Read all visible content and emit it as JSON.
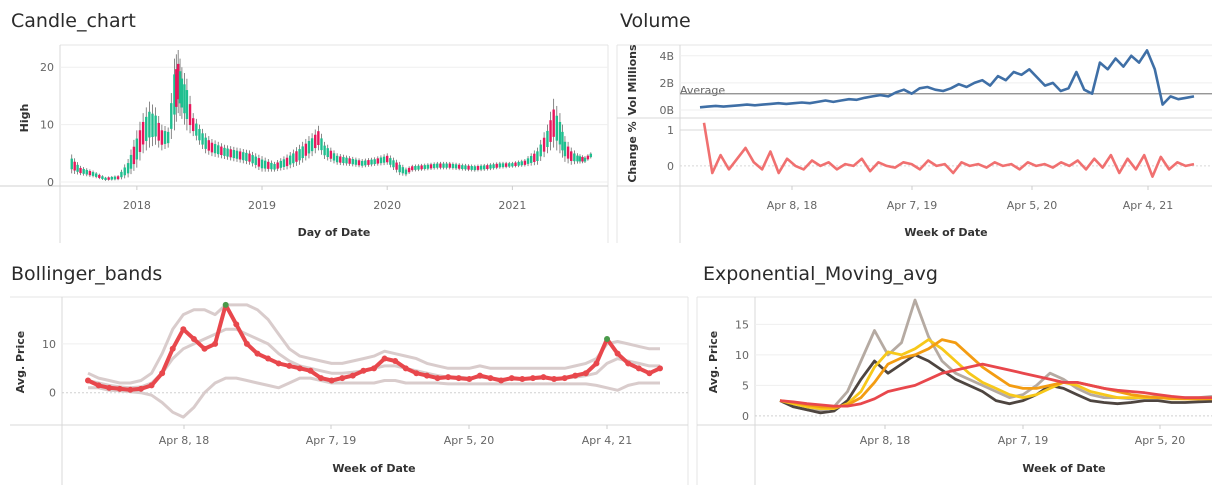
{
  "chart_data": [
    {
      "id": "candle",
      "type": "candlestick",
      "title": "Candle_chart",
      "xlabel": "Day of Date",
      "ylabel": "High",
      "xticks": [
        "2018",
        "2019",
        "2020",
        "2021"
      ],
      "yticks": [
        0,
        10,
        20
      ],
      "ylim": [
        0,
        23
      ],
      "xlim": [
        2017.45,
        2021.7
      ],
      "colors": {
        "up": "#1fbf8f",
        "down": "#e8175d",
        "wick": "#555555"
      },
      "x": [
        2017.48,
        2017.55,
        2017.65,
        2017.75,
        2017.85,
        2017.93,
        2018.0,
        2018.05,
        2018.1,
        2018.15,
        2018.2,
        2018.25,
        2018.3,
        2018.33,
        2018.36,
        2018.4,
        2018.45,
        2018.5,
        2018.55,
        2018.6,
        2018.7,
        2018.8,
        2018.9,
        2019.0,
        2019.1,
        2019.2,
        2019.3,
        2019.4,
        2019.45,
        2019.5,
        2019.6,
        2019.7,
        2019.8,
        2019.9,
        2020.0,
        2020.1,
        2020.15,
        2020.2,
        2020.3,
        2020.4,
        2020.5,
        2020.6,
        2020.7,
        2020.8,
        2020.9,
        2021.0,
        2021.1,
        2021.2,
        2021.28,
        2021.33,
        2021.38,
        2021.42,
        2021.47,
        2021.52,
        2021.58,
        2021.65
      ],
      "high": [
        4.8,
        2.8,
        2.0,
        0.9,
        1.2,
        4.0,
        9.0,
        12.0,
        14.0,
        13.0,
        10.0,
        9.5,
        21.5,
        23.0,
        20.0,
        18.0,
        12.0,
        10.0,
        8.5,
        7.5,
        6.5,
        6.0,
        5.5,
        4.5,
        3.5,
        4.8,
        6.5,
        8.5,
        9.8,
        7.0,
        5.0,
        4.5,
        4.0,
        4.3,
        5.0,
        3.5,
        2.5,
        3.0,
        3.2,
        3.5,
        3.5,
        3.2,
        3.0,
        3.2,
        3.5,
        3.5,
        4.0,
        6.0,
        10.0,
        14.5,
        12.0,
        8.0,
        6.0,
        5.0,
        4.5,
        5.5
      ],
      "low": [
        1.5,
        1.2,
        0.8,
        0.2,
        0.3,
        0.8,
        2.5,
        5.0,
        6.0,
        6.5,
        5.5,
        6.0,
        9.0,
        12.0,
        11.0,
        9.0,
        8.0,
        6.5,
        5.0,
        4.5,
        4.0,
        3.5,
        3.0,
        1.8,
        1.8,
        2.2,
        3.0,
        4.5,
        5.5,
        4.0,
        3.0,
        2.8,
        2.5,
        2.8,
        3.0,
        1.2,
        1.0,
        1.8,
        2.0,
        2.2,
        2.2,
        2.0,
        1.8,
        2.0,
        2.3,
        2.5,
        2.7,
        3.0,
        5.0,
        6.0,
        5.0,
        3.5,
        3.0,
        3.2,
        3.3,
        4.5
      ]
    },
    {
      "id": "volume",
      "type": "line",
      "title": "Volume",
      "xlabel": "Week of Date",
      "xticks": [
        "Apr 8, 18",
        "Apr 7, 19",
        "Apr 5, 20",
        "Apr 4, 21"
      ],
      "reference_line": "Average",
      "panes": [
        {
          "ylabel": "Vol Millions",
          "yticks": [
            "0B",
            "2B",
            "4B"
          ],
          "ylim": [
            0,
            4.5
          ],
          "average": 1.2,
          "color": "#3f6fa6",
          "values": [
            0.2,
            0.25,
            0.3,
            0.25,
            0.3,
            0.35,
            0.4,
            0.35,
            0.4,
            0.45,
            0.5,
            0.45,
            0.5,
            0.55,
            0.5,
            0.6,
            0.7,
            0.6,
            0.7,
            0.8,
            0.75,
            0.9,
            1.0,
            1.1,
            1.0,
            1.3,
            1.5,
            1.2,
            1.6,
            1.7,
            1.5,
            1.4,
            1.6,
            1.9,
            1.7,
            2.0,
            2.2,
            1.8,
            2.5,
            2.2,
            2.8,
            2.6,
            3.0,
            2.4,
            1.8,
            2.0,
            1.4,
            1.6,
            2.8,
            1.5,
            1.2,
            3.5,
            3.0,
            3.8,
            3.2,
            4.0,
            3.5,
            4.4,
            3.0,
            0.4,
            1.0,
            0.8,
            0.9,
            1.0
          ]
        },
        {
          "ylabel": "Change %",
          "yticks": [
            "0",
            "1"
          ],
          "ylim": [
            -0.45,
            1.25
          ],
          "color": "#f07070",
          "values": [
            1.2,
            -0.2,
            0.3,
            -0.1,
            0.2,
            0.5,
            0.1,
            -0.1,
            0.4,
            -0.2,
            0.2,
            0.0,
            -0.1,
            0.15,
            0.0,
            0.1,
            -0.1,
            0.05,
            0.0,
            0.2,
            -0.15,
            0.1,
            0.0,
            -0.05,
            0.1,
            0.05,
            -0.1,
            0.15,
            0.0,
            0.05,
            -0.2,
            0.1,
            0.0,
            0.05,
            -0.05,
            0.1,
            0.0,
            0.05,
            -0.1,
            0.1,
            0.0,
            0.05,
            -0.05,
            0.1,
            0.0,
            0.15,
            -0.1,
            0.2,
            -0.05,
            0.3,
            -0.2,
            0.2,
            -0.1,
            0.3,
            -0.3,
            0.25,
            -0.1,
            0.1,
            0.0,
            0.05
          ]
        }
      ]
    },
    {
      "id": "bollinger",
      "type": "line",
      "title": "Bollinger_bands",
      "xlabel": "Week of Date",
      "ylabel": "Avg. Price",
      "xticks": [
        "Apr 8, 18",
        "Apr 7, 19",
        "Apr 5, 20",
        "Apr 4, 21"
      ],
      "yticks": [
        0,
        10
      ],
      "ylim": [
        -6,
        19
      ],
      "colors": {
        "price": "#e8474c",
        "highlight": "#4a9a4a",
        "bands": "#d9cccc"
      },
      "price": [
        2.5,
        1.5,
        1.0,
        0.8,
        0.6,
        0.8,
        1.5,
        4.0,
        9.0,
        13.0,
        11.0,
        9.0,
        10.0,
        18.0,
        14.0,
        10.0,
        8.0,
        7.0,
        6.0,
        5.5,
        5.0,
        4.5,
        3.0,
        2.5,
        3.0,
        3.5,
        4.5,
        5.0,
        7.0,
        6.5,
        5.0,
        4.0,
        3.5,
        3.0,
        3.2,
        3.0,
        2.8,
        3.5,
        3.0,
        2.5,
        3.0,
        2.8,
        3.0,
        3.2,
        2.8,
        3.0,
        3.5,
        4.0,
        6.0,
        11.0,
        8.0,
        6.0,
        5.0,
        4.0,
        5.0
      ],
      "upper": [
        4.0,
        3.0,
        2.5,
        2.0,
        2.0,
        2.5,
        4.0,
        8.0,
        13.0,
        16.0,
        17.0,
        17.0,
        16.0,
        18.0,
        18.0,
        18.0,
        17.0,
        15.0,
        12.0,
        9.0,
        7.5,
        7.0,
        6.5,
        6.0,
        6.0,
        6.5,
        7.0,
        7.5,
        8.5,
        8.0,
        7.5,
        7.0,
        6.0,
        5.5,
        5.0,
        5.0,
        5.0,
        5.5,
        5.0,
        5.0,
        5.0,
        5.0,
        5.0,
        5.0,
        5.0,
        5.0,
        5.5,
        6.0,
        7.0,
        10.0,
        10.5,
        10.0,
        9.5,
        9.0,
        9.0
      ],
      "middle": [
        2.5,
        2.0,
        1.5,
        1.2,
        1.0,
        1.2,
        2.0,
        4.0,
        7.0,
        9.0,
        10.0,
        11.0,
        12.0,
        13.0,
        13.0,
        12.0,
        11.0,
        10.0,
        8.0,
        6.5,
        5.5,
        5.0,
        4.5,
        4.0,
        4.0,
        4.2,
        4.5,
        5.0,
        5.5,
        5.5,
        5.0,
        4.5,
        4.0,
        3.5,
        3.2,
        3.2,
        3.0,
        3.2,
        3.0,
        2.8,
        2.8,
        2.8,
        2.9,
        3.0,
        3.0,
        3.0,
        3.2,
        3.5,
        4.0,
        6.0,
        7.0,
        6.5,
        6.0,
        5.5,
        5.5
      ],
      "lower": [
        1.0,
        1.0,
        0.5,
        0.4,
        0.2,
        0.0,
        -0.5,
        -2.0,
        -4.0,
        -5.0,
        -3.0,
        0.0,
        2.0,
        3.0,
        3.0,
        2.5,
        2.0,
        1.5,
        1.0,
        2.0,
        3.0,
        3.0,
        2.5,
        2.0,
        2.0,
        2.0,
        2.0,
        2.0,
        2.5,
        2.5,
        2.0,
        2.0,
        2.0,
        2.0,
        1.8,
        1.8,
        1.8,
        1.8,
        1.8,
        1.8,
        1.8,
        1.8,
        1.8,
        1.8,
        1.8,
        1.8,
        1.8,
        1.8,
        1.5,
        1.0,
        0.5,
        1.5,
        2.0,
        2.0,
        2.0
      ]
    },
    {
      "id": "ema",
      "type": "line",
      "title": "Exponential_Moving_avg",
      "xlabel": "Week of Date",
      "ylabel": "Avg. Price",
      "xticks": [
        "Apr 8, 18",
        "Apr 7, 19",
        "Apr 5, 20"
      ],
      "yticks": [
        0,
        5,
        10,
        15
      ],
      "ylim": [
        -1,
        19
      ],
      "series": [
        {
          "color": "#b5aaa2",
          "values": [
            2.5,
            1.5,
            1.0,
            0.8,
            1.5,
            4.0,
            9.0,
            14.0,
            10.0,
            12.0,
            19.0,
            13.0,
            9.0,
            7.0,
            6.0,
            5.0,
            4.0,
            3.0,
            3.5,
            5.0,
            7.0,
            6.0,
            4.5,
            3.5,
            3.0,
            3.0,
            2.8,
            3.0,
            3.2,
            3.0,
            3.0,
            3.0,
            3.2
          ]
        },
        {
          "color": "#4e4540",
          "values": [
            2.5,
            1.5,
            1.0,
            0.5,
            0.8,
            2.5,
            6.0,
            9.0,
            7.0,
            8.5,
            10.0,
            9.0,
            7.5,
            6.0,
            5.0,
            4.0,
            2.5,
            2.0,
            2.5,
            3.5,
            5.0,
            4.5,
            3.5,
            2.5,
            2.2,
            2.0,
            2.2,
            2.5,
            2.5,
            2.2,
            2.2,
            2.3,
            2.4
          ]
        },
        {
          "color": "#f7c81a",
          "values": [
            2.5,
            2.0,
            1.5,
            1.2,
            1.2,
            2.0,
            4.0,
            8.0,
            10.5,
            10.0,
            11.0,
            12.5,
            11.0,
            9.0,
            7.0,
            5.5,
            4.5,
            3.5,
            3.0,
            3.5,
            4.5,
            5.5,
            5.0,
            4.0,
            3.5,
            3.0,
            3.0,
            3.0,
            3.0,
            2.8,
            2.8,
            2.8,
            2.9
          ]
        },
        {
          "color": "#f39c12",
          "values": [
            2.5,
            2.2,
            1.8,
            1.5,
            1.4,
            1.8,
            3.0,
            5.5,
            8.5,
            9.5,
            10.0,
            11.0,
            12.5,
            12.0,
            10.0,
            8.0,
            6.5,
            5.0,
            4.5,
            4.5,
            5.0,
            5.5,
            5.5,
            5.0,
            4.5,
            4.0,
            3.5,
            3.2,
            3.0,
            2.9,
            2.8,
            2.8,
            2.8
          ]
        },
        {
          "color": "#e8474c",
          "values": [
            2.5,
            2.3,
            2.0,
            1.8,
            1.6,
            1.6,
            2.0,
            2.8,
            4.0,
            4.5,
            5.0,
            6.0,
            7.0,
            7.5,
            8.0,
            8.5,
            8.0,
            7.5,
            7.0,
            6.5,
            6.0,
            5.5,
            5.5,
            5.0,
            4.5,
            4.2,
            4.0,
            3.8,
            3.5,
            3.2,
            3.0,
            3.0,
            3.0
          ]
        }
      ]
    }
  ]
}
